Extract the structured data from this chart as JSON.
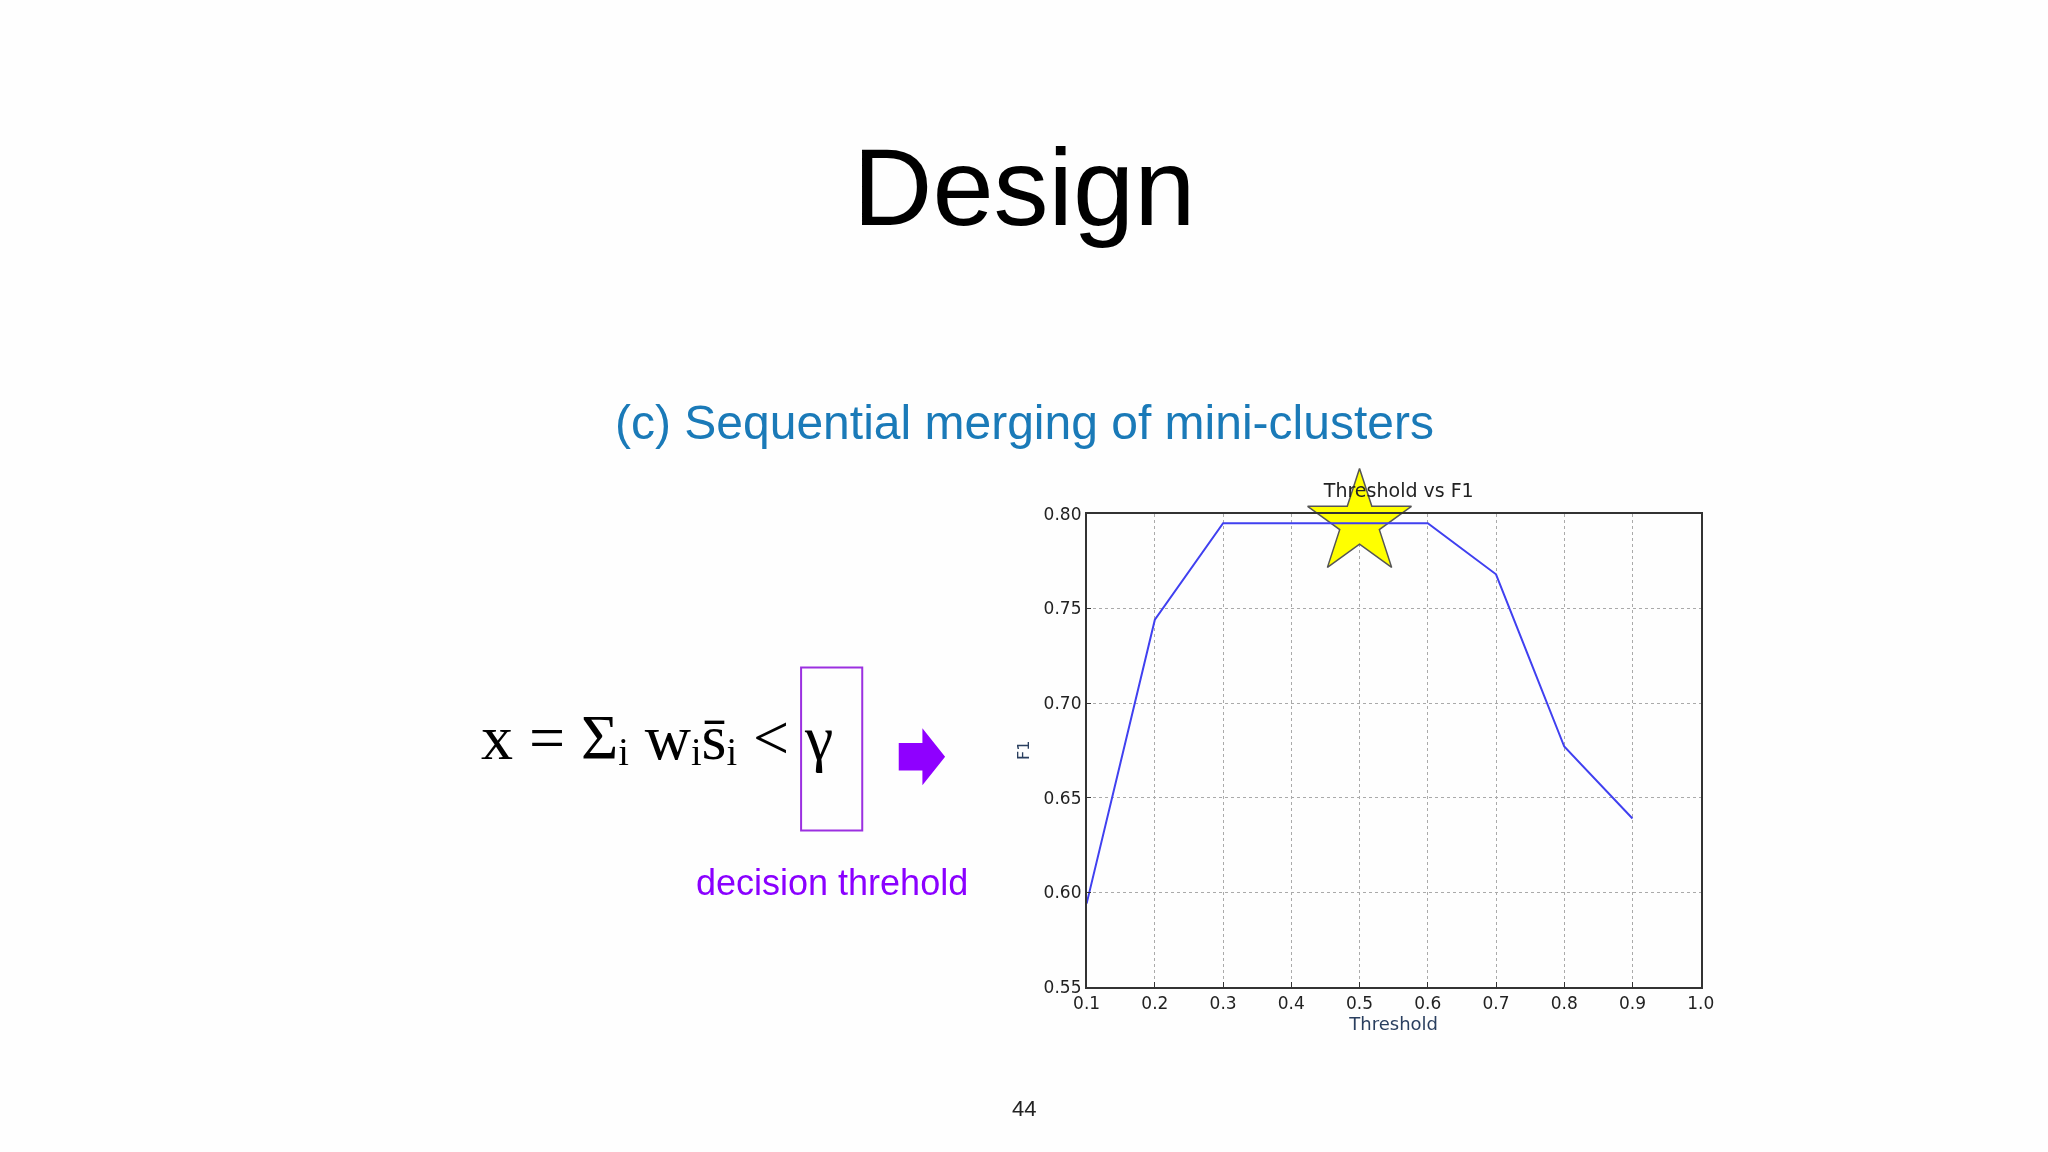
{
  "chart_data": {
    "type": "line",
    "title": "Threshold vs F1",
    "xlabel": "Threshold",
    "ylabel": "F1",
    "x": [
      0.1,
      0.2,
      0.3,
      0.4,
      0.5,
      0.6,
      0.7,
      0.8,
      0.9
    ],
    "series": [
      {
        "color": "#4040f0",
        "values": [
          0.594,
          0.744,
          0.795,
          0.795,
          0.795,
          0.795,
          0.768,
          0.677,
          0.639
        ]
      },
      {
        "type": "scatter",
        "marker": "star",
        "color": "#ffff00",
        "x": [
          0.5
        ],
        "values": [
          0.795
        ]
      }
    ],
    "xlim": [
      0.1,
      1.0
    ],
    "xticks": [
      {
        "value": 0.1,
        "label": "0.1"
      },
      {
        "value": 0.2,
        "label": "0.2"
      },
      {
        "value": 0.3,
        "label": "0.3"
      },
      {
        "value": 0.4,
        "label": "0.4"
      },
      {
        "value": 0.5,
        "label": "0.5"
      },
      {
        "value": 0.6,
        "label": "0.6"
      },
      {
        "value": 0.7,
        "label": "0.7"
      },
      {
        "value": 0.8,
        "label": "0.8"
      },
      {
        "value": 0.9,
        "label": "0.9"
      },
      {
        "value": 1.0,
        "label": "1.0"
      }
    ],
    "ylim": [
      0.55,
      0.8
    ],
    "yticks": [
      {
        "value": 0.55,
        "label": "0.55"
      },
      {
        "value": 0.6,
        "label": "0.60"
      },
      {
        "value": 0.65,
        "label": "0.65"
      },
      {
        "value": 0.7,
        "label": "0.70"
      },
      {
        "value": 0.75,
        "label": "0.75"
      },
      {
        "value": 0.8,
        "label": "0.80"
      }
    ],
    "grid": true,
    "marker": "none",
    "line_style": "solid",
    "annotations": [
      "Design",
      "(c) Sequential merging of mini-clusters",
      "x = Σᵢ wᵢs̄ᵢ < γ",
      "decision threhold",
      "44"
    ]
  }
}
